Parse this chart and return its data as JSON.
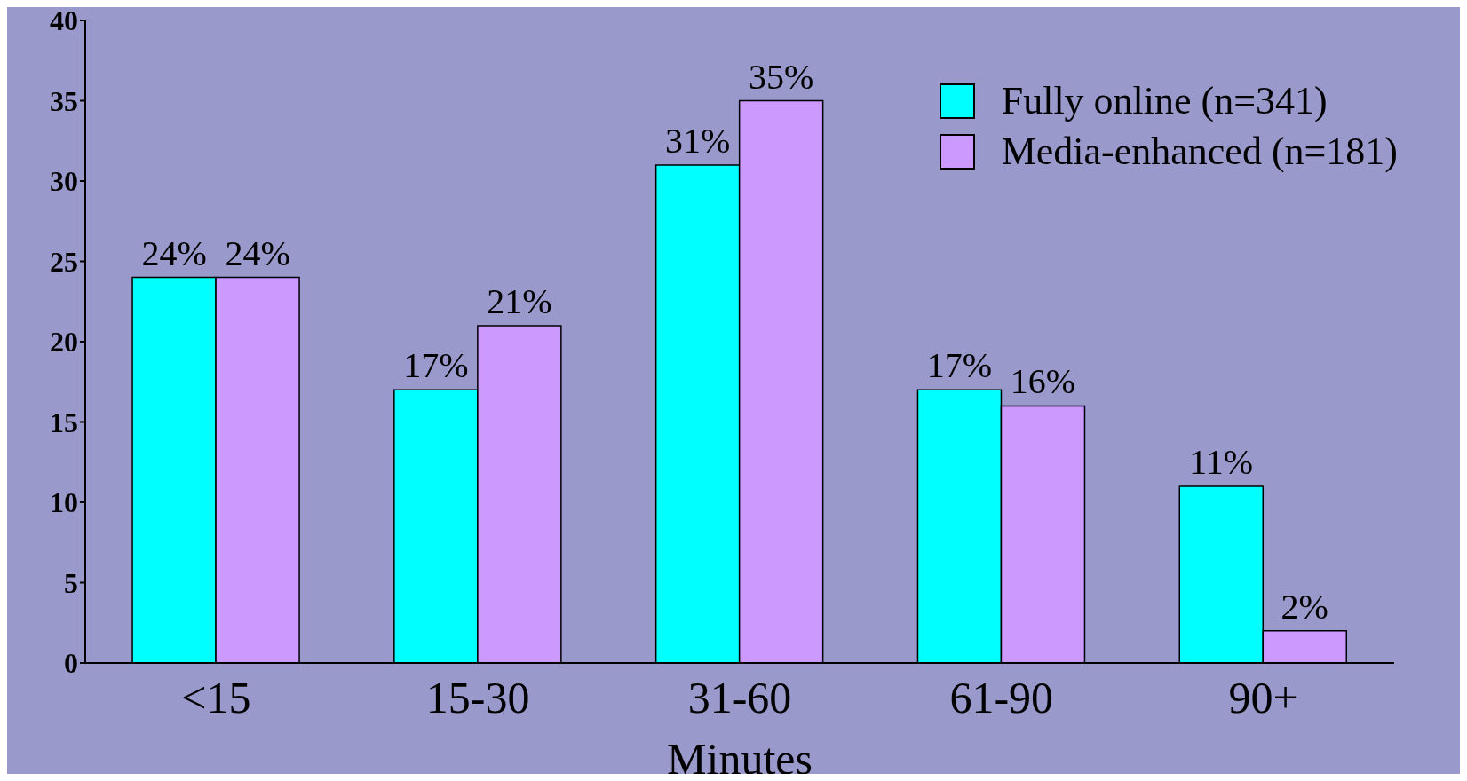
{
  "chart_data": {
    "type": "bar",
    "xlabel": "Minutes",
    "categories": [
      "<15",
      "15-30",
      "31-60",
      "61-90",
      "90+"
    ],
    "series": [
      {
        "name": "Fully online (n=341)",
        "color": "#00ffff",
        "values": [
          24,
          17,
          31,
          17,
          11
        ],
        "value_labels": [
          "24%",
          "17%",
          "31%",
          "17%",
          "11%"
        ]
      },
      {
        "name": "Media-enhanced (n=181)",
        "color": "#cc99ff",
        "values": [
          24,
          21,
          35,
          16,
          2
        ],
        "value_labels": [
          "24%",
          "21%",
          "35%",
          "16%",
          "2%"
        ]
      }
    ],
    "ylim": [
      0,
      40
    ],
    "yticks": [
      0,
      5,
      10,
      15,
      20,
      25,
      30,
      35,
      40
    ],
    "grid": false,
    "legend": "top right"
  }
}
